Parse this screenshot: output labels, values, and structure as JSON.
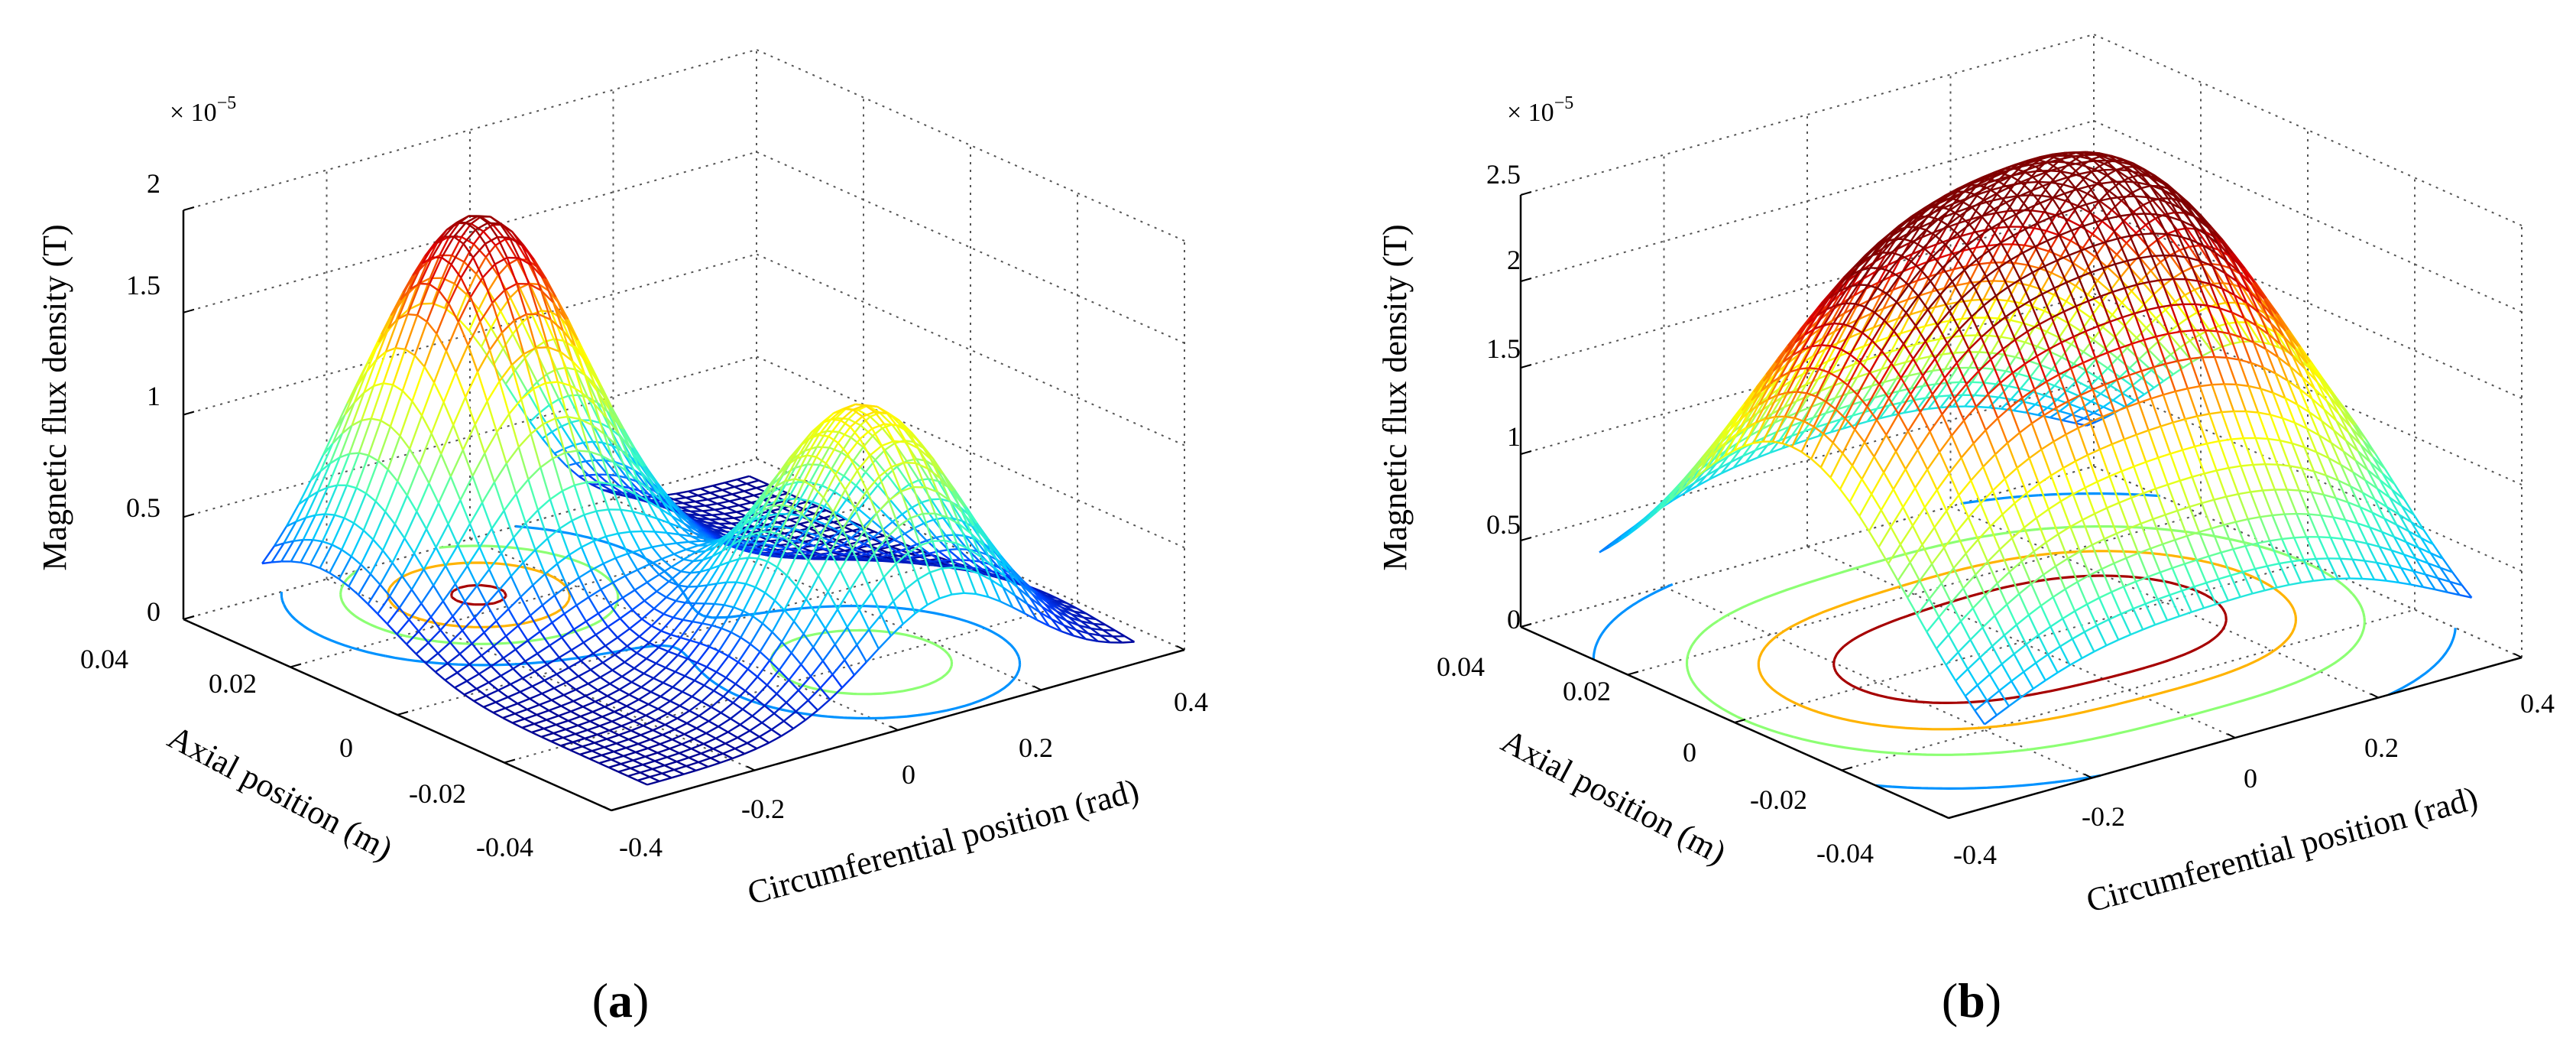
{
  "chart_data": [
    {
      "type": "surface",
      "panel_label": "(a)",
      "zlabel": "Magnetic flux density (T)",
      "ylabel": "Axial position (m)",
      "xlabel": "Circumferential position (rad)",
      "z_exponent_prefix": "× 10",
      "z_exponent": "−5",
      "x_ticks": [
        "-0.4",
        "-0.2",
        "0",
        "0.2",
        "0.4"
      ],
      "y_ticks": [
        "-0.04",
        "-0.02",
        "0",
        "0.02",
        "0.04"
      ],
      "z_ticks": [
        "0",
        "0.5",
        "1",
        "1.5",
        "2"
      ],
      "xlim": [
        -0.4,
        0.4
      ],
      "ylim": [
        -0.04,
        0.04
      ],
      "zlim": [
        0,
        2
      ],
      "peaks": [
        {
          "x": -0.1,
          "y": 0.025,
          "height": 1.85,
          "sx": 0.12,
          "sy": 0.013
        },
        {
          "x": 0.1,
          "y": -0.02,
          "height": 1.25,
          "sx": 0.11,
          "sy": 0.012
        }
      ],
      "colormap": [
        "#00008f",
        "#0040ff",
        "#00c8ff",
        "#40ffbf",
        "#bfff40",
        "#ffff00",
        "#ff8000",
        "#e00000",
        "#800000"
      ],
      "grid": true
    },
    {
      "type": "surface",
      "panel_label": "(b)",
      "zlabel": "Magnetic flux density (T)",
      "ylabel": "Axial position (m)",
      "xlabel": "Circumferential position (rad)",
      "z_exponent_prefix": "× 10",
      "z_exponent": "−5",
      "x_ticks": [
        "-0.4",
        "-0.2",
        "0",
        "0.2",
        "0.4"
      ],
      "y_ticks": [
        "-0.04",
        "-0.02",
        "0",
        "0.02",
        "0.04"
      ],
      "z_ticks": [
        "0",
        "0.5",
        "1",
        "1.5",
        "2",
        "2.5"
      ],
      "xlim": [
        -0.4,
        0.4
      ],
      "ylim": [
        -0.04,
        0.04
      ],
      "zlim": [
        0,
        2.5
      ],
      "peaks": [
        {
          "x": -0.17,
          "y": 0.0,
          "height": 2.05,
          "sx": 0.18,
          "sy": 0.022
        },
        {
          "x": 0.17,
          "y": 0.0,
          "height": 2.2,
          "sx": 0.18,
          "sy": 0.022
        }
      ],
      "colormap": [
        "#00008f",
        "#0040ff",
        "#00c8ff",
        "#40ffbf",
        "#bfff40",
        "#ffff00",
        "#ff8000",
        "#e00000",
        "#800000"
      ],
      "grid": true
    }
  ]
}
